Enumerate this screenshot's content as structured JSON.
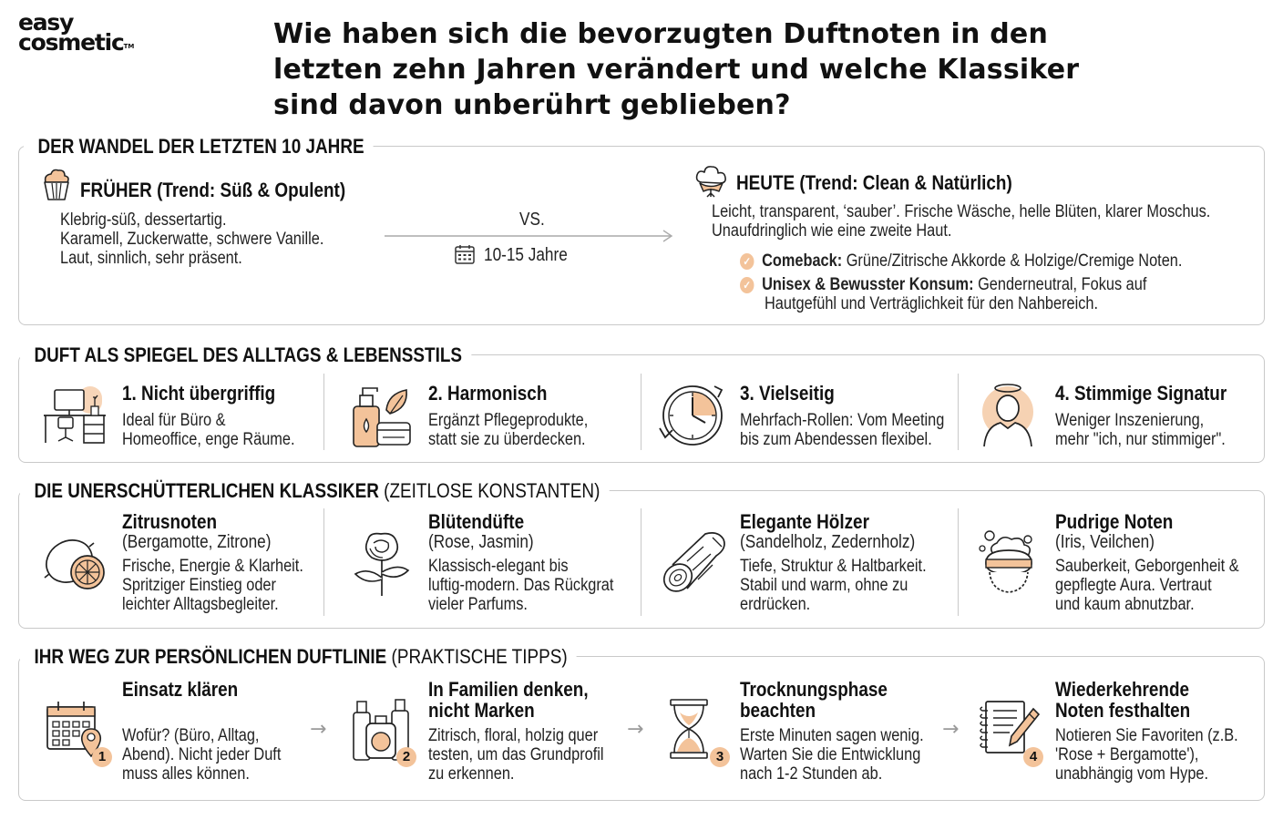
{
  "brand": {
    "logo_line1": "easy",
    "logo_line2": "cosmetic",
    "trademark": "TM"
  },
  "title": "Wie haben sich die bevorzugten Duftnoten in den letzten zehn Jahren verändert und welche Klassiker sind davon unberührt geblieben?",
  "colors": {
    "accent": "#f3c39a",
    "border": "#c9c9c9",
    "text": "#1a1a1a"
  },
  "wandel": {
    "section_title": "DER WANDEL DER LETZTEN 10 JAHRE",
    "frueher": {
      "icon": "cupcake-icon",
      "heading": "FRÜHER (Trend: Süß & Opulent)",
      "lines": [
        "Klebrig-süß, dessertartig.",
        "Karamell, Zuckerwatte, schwere Vanille.",
        "Laut, sinnlich, sehr präsent."
      ]
    },
    "vs": "VS.",
    "period": "10-15 Jahre",
    "heute": {
      "icon": "cotton-flower-icon",
      "heading": "HEUTE (Trend: Clean & Natürlich)",
      "lines": [
        "Leicht, transparent, ‘sauber’. Frische Wäsche, helle Blüten, klarer Moschus.",
        "Unaufdringlich wie eine zweite Haut."
      ],
      "points": [
        {
          "label": "Comeback:",
          "text": "Grüne/Zitrische Akkorde & Holzige/Cremige Noten."
        },
        {
          "label": "Unisex & Bewusster Konsum:",
          "text": "Genderneutral, Fokus auf",
          "text2": "Hautgefühl und Verträglichkeit für den Nahbereich."
        }
      ]
    }
  },
  "alltag": {
    "section_title": "DUFT ALS SPIEGEL DES ALLTAGS & LEBENSSTILS",
    "items": [
      {
        "icon": "office-desk-icon",
        "title": "1. Nicht übergriffig",
        "lines": [
          "Ideal für Büro &",
          "Homeoffice, enge Räume."
        ]
      },
      {
        "icon": "skincare-products-icon",
        "title": "2. Harmonisch",
        "lines": [
          "Ergänzt Pflegeprodukte,",
          "statt sie zu überdecken."
        ]
      },
      {
        "icon": "clock-cycle-icon",
        "title": "3. Vielseitig",
        "lines": [
          "Mehrfach-Rollen: Vom Meeting",
          "bis zum Abendessen flexibel."
        ]
      },
      {
        "icon": "person-halo-icon",
        "title": "4. Stimmige Signatur",
        "lines": [
          "Weniger Inszenierung,",
          "mehr \"ich, nur stimmiger\"."
        ]
      }
    ]
  },
  "klassiker": {
    "section_title_bold": "DIE UNERSCHÜTTERLICHEN KLASSIKER",
    "section_title_rest": " (ZEITLOSE KONSTANTEN)",
    "items": [
      {
        "icon": "lemon-icon",
        "title": "Zitrusnoten",
        "subtitle": "(Bergamotte, Zitrone)",
        "lines": [
          "Frische, Energie & Klarheit.",
          "Spritziger Einstieg oder",
          "leichter Alltagsbegleiter."
        ]
      },
      {
        "icon": "rose-icon",
        "title": "Blütendüfte",
        "subtitle": "(Rose, Jasmin)",
        "lines": [
          "Klassisch-elegant bis",
          "luftig-modern. Das Rückgrat",
          "vieler Parfums."
        ]
      },
      {
        "icon": "wood-log-icon",
        "title": "Elegante Hölzer",
        "subtitle": "(Sandelholz, Zedernholz)",
        "lines": [
          "Tiefe, Struktur & Haltbarkeit.",
          "Stabil und warm, ohne zu",
          "erdrücken."
        ]
      },
      {
        "icon": "powder-puff-icon",
        "title": "Pudrige Noten",
        "subtitle": "(Iris, Veilchen)",
        "lines": [
          "Sauberkeit, Geborgenheit &",
          "gepflegte Aura. Vertraut",
          "und kaum abnutzbar."
        ]
      }
    ]
  },
  "tipps": {
    "section_title_bold": "IHR WEG ZUR PERSÖNLICHEN DUFTLINIE",
    "section_title_rest": " (PRAKTISCHE TIPPS)",
    "items": [
      {
        "icon": "calendar-location-icon",
        "badge": "1",
        "title_lines": [
          "Einsatz klären"
        ],
        "lines": [
          "Wofür? (Büro, Alltag,",
          "Abend). Nicht jeder Duft",
          "muss alles können."
        ]
      },
      {
        "icon": "perfume-bottles-icon",
        "badge": "2",
        "title_lines": [
          "In Familien denken,",
          "nicht Marken"
        ],
        "lines": [
          "Zitrisch, floral, holzig quer",
          "testen, um das Grundprofil",
          "zu erkennen."
        ]
      },
      {
        "icon": "hourglass-icon",
        "badge": "3",
        "title_lines": [
          "Trocknungsphase",
          "beachten"
        ],
        "lines": [
          "Erste Minuten sagen wenig.",
          "Warten Sie die Entwicklung",
          "nach 1-2 Stunden ab."
        ]
      },
      {
        "icon": "notebook-pen-icon",
        "badge": "4",
        "title_lines": [
          "Wiederkehrende",
          "Noten festhalten"
        ],
        "lines": [
          "Notieren Sie Favoriten (z.B.",
          "'Rose + Bergamotte'),",
          "unabhängig vom Hype."
        ]
      }
    ]
  }
}
